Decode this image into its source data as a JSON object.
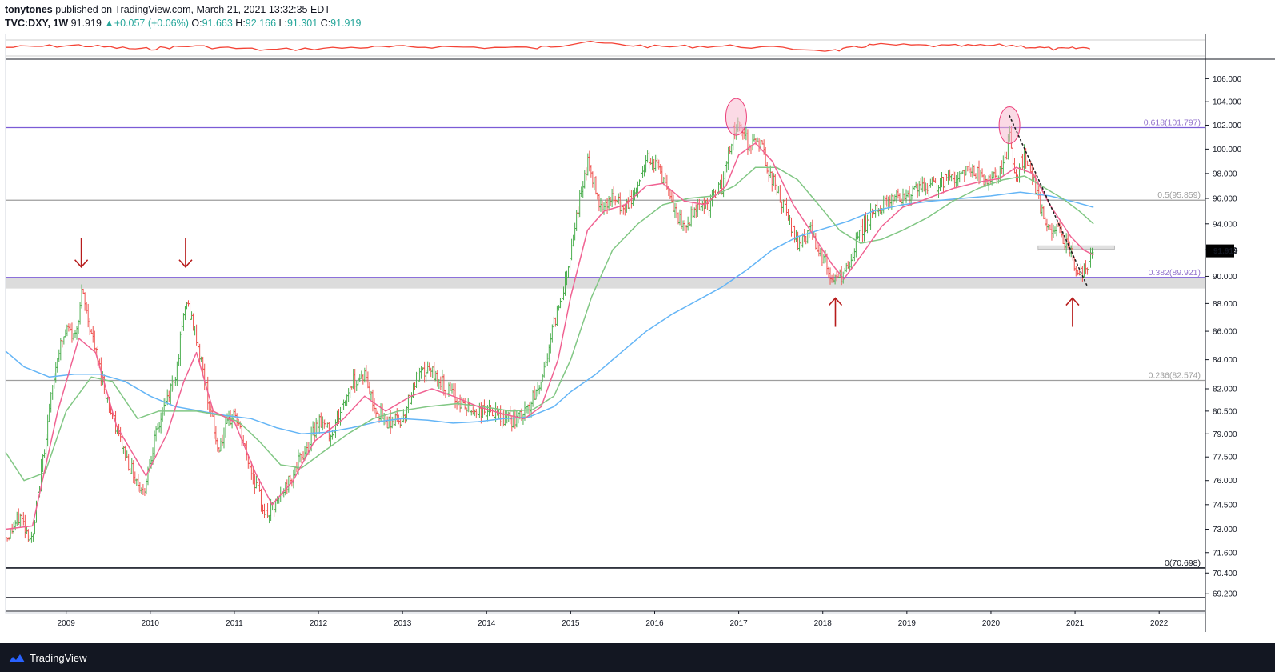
{
  "header": {
    "author": "tonytones",
    "published_text": "published on TradingView.com, March 21, 2021 13:32:35 EDT",
    "symbol_interval": "TVC:DXY, 1W",
    "last": "91.919",
    "change": "+0.057 (+0.06%)",
    "open_label": "O:",
    "open": "91.663",
    "high_label": "H:",
    "high": "92.166",
    "low_label": "L:",
    "low": "91.301",
    "close_label": "C:",
    "close": "91.919"
  },
  "footer": {
    "brand": "TradingView"
  },
  "colors": {
    "up": "#26a69a",
    "bar_up": "#4caf50",
    "bar_down": "#ef5350",
    "ma_fast": "#f06292",
    "ma_mid": "#81c784",
    "ma_slow": "#64b5f6",
    "fib": "#7b5bd6",
    "oscillator": "#f44336",
    "price_label_bg": "#000000",
    "annotation_arrow": "#b71c1c"
  },
  "chart_data": {
    "type": "ohlc",
    "title": "",
    "symbol": "TVC:DXY",
    "interval": "1W",
    "ylim": [
      68.3,
      107.3
    ],
    "y_scale": "log",
    "xlim": [
      2008.28,
      2022.55
    ],
    "grid": false,
    "y_ticks": [
      "106.000",
      "104.000",
      "102.000",
      "100.000",
      "98.000",
      "96.000",
      "94.000",
      "92.000",
      "90.000",
      "88.000",
      "86.000",
      "84.000",
      "82.000",
      "80.500",
      "79.000",
      "77.500",
      "76.000",
      "74.500",
      "73.000",
      "71.600",
      "70.400",
      "69.200"
    ],
    "x_ticks": [
      "2009",
      "2010",
      "2011",
      "2012",
      "2013",
      "2014",
      "2015",
      "2016",
      "2017",
      "2018",
      "2019",
      "2020",
      "2021",
      "2022"
    ],
    "current_price_label": "91.919",
    "price_path": [
      [
        2008.3,
        72.5
      ],
      [
        2008.45,
        73.8
      ],
      [
        2008.6,
        72.2
      ],
      [
        2008.75,
        78.5
      ],
      [
        2008.9,
        84.5
      ],
      [
        2009.02,
        86.2
      ],
      [
        2009.1,
        85.5
      ],
      [
        2009.19,
        88.8
      ],
      [
        2009.35,
        84.5
      ],
      [
        2009.55,
        80.0
      ],
      [
        2009.75,
        77.0
      ],
      [
        2009.92,
        75.2
      ],
      [
        2010.0,
        77.5
      ],
      [
        2010.15,
        80.5
      ],
      [
        2010.3,
        83.0
      ],
      [
        2010.43,
        88.2
      ],
      [
        2010.55,
        85.5
      ],
      [
        2010.65,
        82.5
      ],
      [
        2010.8,
        78.0
      ],
      [
        2011.0,
        80.5
      ],
      [
        2011.15,
        77.5
      ],
      [
        2011.3,
        75.0
      ],
      [
        2011.38,
        73.8
      ],
      [
        2011.5,
        74.5
      ],
      [
        2011.6,
        75.5
      ],
      [
        2011.75,
        77.0
      ],
      [
        2011.9,
        78.5
      ],
      [
        2012.0,
        80.0
      ],
      [
        2012.15,
        79.0
      ],
      [
        2012.3,
        81.0
      ],
      [
        2012.4,
        82.5
      ],
      [
        2012.55,
        83.0
      ],
      [
        2012.65,
        81.0
      ],
      [
        2012.8,
        79.8
      ],
      [
        2013.0,
        80.0
      ],
      [
        2013.15,
        82.5
      ],
      [
        2013.3,
        83.3
      ],
      [
        2013.45,
        82.5
      ],
      [
        2013.6,
        81.5
      ],
      [
        2013.8,
        80.5
      ],
      [
        2014.0,
        80.5
      ],
      [
        2014.2,
        80.0
      ],
      [
        2014.35,
        79.8
      ],
      [
        2014.5,
        80.7
      ],
      [
        2014.65,
        82.5
      ],
      [
        2014.8,
        86.5
      ],
      [
        2014.95,
        90.0
      ],
      [
        2015.05,
        94.0
      ],
      [
        2015.2,
        99.0
      ],
      [
        2015.35,
        95.5
      ],
      [
        2015.5,
        96.0
      ],
      [
        2015.65,
        95.0
      ],
      [
        2015.8,
        97.0
      ],
      [
        2015.92,
        99.5
      ],
      [
        2016.05,
        98.5
      ],
      [
        2016.2,
        95.5
      ],
      [
        2016.35,
        93.5
      ],
      [
        2016.5,
        95.5
      ],
      [
        2016.65,
        95.5
      ],
      [
        2016.8,
        97.0
      ],
      [
        2016.92,
        101.0
      ],
      [
        2017.0,
        102.5
      ],
      [
        2017.1,
        100.5
      ],
      [
        2017.25,
        100.5
      ],
      [
        2017.4,
        97.5
      ],
      [
        2017.55,
        95.0
      ],
      [
        2017.7,
        92.5
      ],
      [
        2017.85,
        93.5
      ],
      [
        2018.0,
        91.5
      ],
      [
        2018.12,
        89.5
      ],
      [
        2018.3,
        90.5
      ],
      [
        2018.45,
        93.5
      ],
      [
        2018.6,
        94.8
      ],
      [
        2018.8,
        96.0
      ],
      [
        2019.0,
        96.3
      ],
      [
        2019.2,
        96.8
      ],
      [
        2019.4,
        97.2
      ],
      [
        2019.6,
        97.8
      ],
      [
        2019.75,
        98.5
      ],
      [
        2019.9,
        97.5
      ],
      [
        2020.05,
        97.5
      ],
      [
        2020.18,
        99.0
      ],
      [
        2020.22,
        102.0
      ],
      [
        2020.28,
        97.5
      ],
      [
        2020.4,
        99.5
      ],
      [
        2020.55,
        96.5
      ],
      [
        2020.65,
        93.5
      ],
      [
        2020.8,
        93.5
      ],
      [
        2020.95,
        92.0
      ],
      [
        2021.0,
        90.3
      ],
      [
        2021.1,
        90.3
      ],
      [
        2021.22,
        91.919
      ]
    ],
    "ma_fast": [
      [
        2008.28,
        73.0
      ],
      [
        2008.6,
        73.2
      ],
      [
        2008.9,
        80.5
      ],
      [
        2009.15,
        85.5
      ],
      [
        2009.35,
        84.5
      ],
      [
        2009.6,
        79.5
      ],
      [
        2009.95,
        76.3
      ],
      [
        2010.2,
        79.0
      ],
      [
        2010.4,
        82.5
      ],
      [
        2010.55,
        84.5
      ],
      [
        2010.75,
        80.5
      ],
      [
        2011.0,
        79.8
      ],
      [
        2011.25,
        76.5
      ],
      [
        2011.45,
        74.5
      ],
      [
        2011.7,
        76.0
      ],
      [
        2011.95,
        78.5
      ],
      [
        2012.3,
        80.0
      ],
      [
        2012.55,
        81.5
      ],
      [
        2012.8,
        80.5
      ],
      [
        2013.1,
        81.5
      ],
      [
        2013.35,
        82.0
      ],
      [
        2013.6,
        81.5
      ],
      [
        2013.9,
        80.8
      ],
      [
        2014.2,
        80.3
      ],
      [
        2014.45,
        80.0
      ],
      [
        2014.65,
        80.8
      ],
      [
        2014.85,
        84.0
      ],
      [
        2015.0,
        88.5
      ],
      [
        2015.2,
        93.5
      ],
      [
        2015.4,
        95.0
      ],
      [
        2015.65,
        95.5
      ],
      [
        2015.9,
        97.0
      ],
      [
        2016.1,
        97.2
      ],
      [
        2016.35,
        95.8
      ],
      [
        2016.6,
        95.5
      ],
      [
        2016.85,
        97.0
      ],
      [
        2017.0,
        99.5
      ],
      [
        2017.2,
        100.5
      ],
      [
        2017.4,
        99.0
      ],
      [
        2017.65,
        95.5
      ],
      [
        2017.85,
        93.5
      ],
      [
        2018.1,
        91.0
      ],
      [
        2018.25,
        89.8
      ],
      [
        2018.45,
        91.5
      ],
      [
        2018.7,
        93.8
      ],
      [
        2018.95,
        95.3
      ],
      [
        2019.25,
        96.0
      ],
      [
        2019.55,
        96.8
      ],
      [
        2019.85,
        97.3
      ],
      [
        2020.1,
        97.6
      ],
      [
        2020.3,
        98.5
      ],
      [
        2020.5,
        98.0
      ],
      [
        2020.7,
        95.5
      ],
      [
        2020.95,
        93.0
      ],
      [
        2021.1,
        92.0
      ],
      [
        2021.22,
        91.6
      ]
    ],
    "ma_mid": [
      [
        2008.28,
        77.8
      ],
      [
        2008.5,
        76.0
      ],
      [
        2008.75,
        76.5
      ],
      [
        2009.0,
        80.5
      ],
      [
        2009.3,
        82.8
      ],
      [
        2009.55,
        82.5
      ],
      [
        2009.85,
        80.0
      ],
      [
        2010.1,
        80.5
      ],
      [
        2010.3,
        80.5
      ],
      [
        2010.55,
        80.5
      ],
      [
        2010.85,
        80.2
      ],
      [
        2011.05,
        79.8
      ],
      [
        2011.3,
        78.5
      ],
      [
        2011.55,
        77.0
      ],
      [
        2011.8,
        76.8
      ],
      [
        2012.05,
        77.8
      ],
      [
        2012.35,
        79.0
      ],
      [
        2012.65,
        80.0
      ],
      [
        2012.95,
        80.5
      ],
      [
        2013.3,
        80.8
      ],
      [
        2013.65,
        81.0
      ],
      [
        2013.95,
        80.8
      ],
      [
        2014.3,
        80.5
      ],
      [
        2014.55,
        80.6
      ],
      [
        2014.8,
        81.5
      ],
      [
        2015.0,
        84.0
      ],
      [
        2015.25,
        88.5
      ],
      [
        2015.5,
        92.0
      ],
      [
        2015.8,
        94.0
      ],
      [
        2016.1,
        95.5
      ],
      [
        2016.4,
        96.0
      ],
      [
        2016.7,
        96.2
      ],
      [
        2016.95,
        97.0
      ],
      [
        2017.2,
        98.5
      ],
      [
        2017.45,
        98.5
      ],
      [
        2017.7,
        97.5
      ],
      [
        2017.95,
        95.5
      ],
      [
        2018.2,
        93.5
      ],
      [
        2018.45,
        92.5
      ],
      [
        2018.7,
        92.8
      ],
      [
        2018.95,
        93.5
      ],
      [
        2019.25,
        94.5
      ],
      [
        2019.55,
        95.8
      ],
      [
        2019.85,
        96.8
      ],
      [
        2020.15,
        97.5
      ],
      [
        2020.4,
        97.8
      ],
      [
        2020.6,
        97.0
      ],
      [
        2020.85,
        96.0
      ],
      [
        2021.05,
        95.0
      ],
      [
        2021.22,
        94.0
      ]
    ],
    "ma_slow": [
      [
        2008.28,
        84.6
      ],
      [
        2008.5,
        83.5
      ],
      [
        2008.8,
        82.8
      ],
      [
        2009.1,
        83.0
      ],
      [
        2009.4,
        83.0
      ],
      [
        2009.7,
        82.5
      ],
      [
        2010.0,
        81.5
      ],
      [
        2010.3,
        80.8
      ],
      [
        2010.6,
        80.5
      ],
      [
        2010.9,
        80.2
      ],
      [
        2011.2,
        80.0
      ],
      [
        2011.5,
        79.4
      ],
      [
        2011.8,
        79.0
      ],
      [
        2012.1,
        79.1
      ],
      [
        2012.4,
        79.4
      ],
      [
        2012.7,
        79.8
      ],
      [
        2013.0,
        80.0
      ],
      [
        2013.3,
        79.9
      ],
      [
        2013.6,
        79.7
      ],
      [
        2013.9,
        79.8
      ],
      [
        2014.2,
        80.0
      ],
      [
        2014.5,
        80.1
      ],
      [
        2014.8,
        80.8
      ],
      [
        2015.0,
        81.8
      ],
      [
        2015.3,
        83.0
      ],
      [
        2015.6,
        84.5
      ],
      [
        2015.9,
        86.0
      ],
      [
        2016.2,
        87.2
      ],
      [
        2016.5,
        88.2
      ],
      [
        2016.8,
        89.2
      ],
      [
        2017.1,
        90.5
      ],
      [
        2017.4,
        92.0
      ],
      [
        2017.7,
        93.0
      ],
      [
        2017.95,
        93.5
      ],
      [
        2018.3,
        94.2
      ],
      [
        2018.6,
        95.0
      ],
      [
        2018.95,
        95.5
      ],
      [
        2019.3,
        95.8
      ],
      [
        2019.65,
        96.0
      ],
      [
        2020.0,
        96.2
      ],
      [
        2020.35,
        96.5
      ],
      [
        2020.7,
        96.2
      ],
      [
        2021.0,
        95.7
      ],
      [
        2021.22,
        95.3
      ]
    ],
    "oscillator_path": [
      [
        2008.28,
        0.45
      ],
      [
        2009.15,
        0.3
      ],
      [
        2009.9,
        0.6
      ],
      [
        2010.45,
        0.35
      ],
      [
        2011.4,
        0.65
      ],
      [
        2012.5,
        0.45
      ],
      [
        2013.35,
        0.4
      ],
      [
        2014.6,
        0.5
      ],
      [
        2015.15,
        0.05
      ],
      [
        2016.0,
        0.4
      ],
      [
        2016.9,
        0.35
      ],
      [
        2018.15,
        0.7
      ],
      [
        2018.6,
        0.25
      ],
      [
        2019.5,
        0.35
      ],
      [
        2020.25,
        0.3
      ],
      [
        2020.8,
        0.6
      ],
      [
        2021.22,
        0.45
      ]
    ],
    "fib_levels": [
      {
        "level": 101.797,
        "label": "0.618(101.797)",
        "color": "#7b5bd6",
        "text_color": "#9575cd",
        "width": 1.3
      },
      {
        "level": 95.859,
        "label": "0.5(95.859)",
        "color": "#9e9e9e",
        "text_color": "#9e9e9e",
        "width": 1.3
      },
      {
        "level": 89.921,
        "label": "0.382(89.921)",
        "color": "#7b5bd6",
        "text_color": "#9575cd",
        "width": 1.3
      },
      {
        "level": 82.574,
        "label": "0.236(82.574)",
        "color": "#9e9e9e",
        "text_color": "#9e9e9e",
        "width": 1.3
      },
      {
        "level": 70.698,
        "label": "0(70.698)",
        "color": "#131722",
        "text_color": "#131722",
        "width": 1.6
      }
    ],
    "extra_lines": [
      69.0
    ],
    "support_zone": [
      89.1,
      89.921
    ],
    "target_zone": {
      "x0": 2020.56,
      "x1": 2021.47,
      "y0": 92.05,
      "y1": 92.3
    },
    "annotations": [
      {
        "type": "arrow-down",
        "x": 2009.18,
        "y": 90.7
      },
      {
        "type": "arrow-down",
        "x": 2010.42,
        "y": 90.7
      },
      {
        "type": "arrow-up",
        "x": 2018.15,
        "y": 88.4
      },
      {
        "type": "arrow-up",
        "x": 2020.97,
        "y": 88.4
      },
      {
        "type": "ellipse",
        "x": 2016.97,
        "y": 102.7
      },
      {
        "type": "ellipse",
        "x": 2020.22,
        "y": 102.0
      },
      {
        "type": "trend-dotted",
        "points": [
          [
            2020.22,
            102.8
          ],
          [
            2021.15,
            89.2
          ]
        ]
      }
    ]
  }
}
